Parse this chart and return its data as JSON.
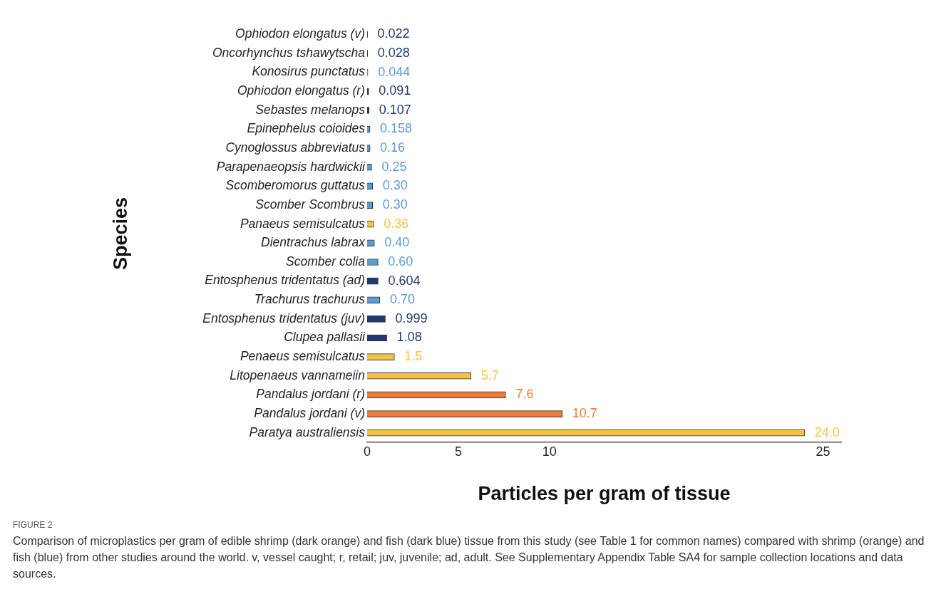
{
  "chart_data": {
    "type": "bar",
    "orientation": "horizontal",
    "xlabel": "Particles per gram of tissue",
    "ylabel": "Species",
    "categories": [
      "Ophiodon elongatus (v)",
      "Oncorhynchus tshawytscha",
      "Konosirus punctatus",
      "Ophiodon elongatus (r)",
      "Sebastes melanops",
      "Epinephelus coioides",
      "Cynoglossus abbreviatus",
      "Parapenaeopsis hardwickii",
      "Scomberomorus guttatus",
      "Scomber Scombrus",
      "Panaeus semisulcatus",
      "Dientrachus labrax",
      "Scomber colia",
      "Entosphenus tridentatus (ad)",
      "Trachurus trachurus",
      "Entosphenus tridentatus (juv)",
      "Clupea pallasii",
      "Penaeus semisulcatus",
      "Litopenaeus vannameiin",
      "Pandalus jordani (r)",
      "Pandalus jordani (v)",
      "Paratya australiensis"
    ],
    "values": [
      0.022,
      0.028,
      0.044,
      0.091,
      0.107,
      0.158,
      0.16,
      0.25,
      0.3,
      0.3,
      0.36,
      0.4,
      0.6,
      0.604,
      0.7,
      0.999,
      1.08,
      1.5,
      5.7,
      7.6,
      10.7,
      24.0
    ],
    "value_labels": [
      "0.022",
      "0.028",
      "0.044",
      "0.091",
      "0.107",
      "0.158",
      "0.16",
      "0.25",
      "0.30",
      "0.30",
      "0.36",
      "0.40",
      "0.60",
      "0.604",
      "0.70",
      "0.999",
      "1.08",
      "1.5",
      "5.7",
      "7.6",
      "10.7",
      "24.0"
    ],
    "colors": [
      "#1f3a6e",
      "#1f3a6e",
      "#5b9bd5",
      "#1f3a6e",
      "#1f3a6e",
      "#5b9bd5",
      "#5b9bd5",
      "#5b9bd5",
      "#5b9bd5",
      "#5b9bd5",
      "#f5c342",
      "#5b9bd5",
      "#5b9bd5",
      "#1f3a6e",
      "#5b9bd5",
      "#1f3a6e",
      "#1f3a6e",
      "#f5c342",
      "#f5c342",
      "#ee7d3a",
      "#ee7d3a",
      "#f5c342"
    ],
    "xlim": [
      0,
      26
    ],
    "xticks": [
      0,
      5,
      10,
      25
    ],
    "grid": false,
    "legend": false,
    "annotations": [
      "FIGURE 2",
      "Comparison of microplastics per gram of edible shrimp (dark orange) and fish (dark blue) tissue from this study (see Table 1 for common names) compared with shrimp (orange) and fish (blue) from other studies around the world. v, vessel caught; r, retail; juv, juvenile; ad, adult. See Supplementary Appendix Table SA4 for sample collection locations and data sources."
    ]
  }
}
